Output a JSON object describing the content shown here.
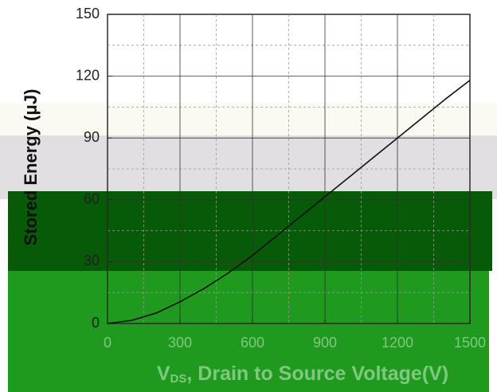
{
  "chart_data": {
    "type": "line",
    "y_label": "Stored Energy (μJ)",
    "x_label_main": "V",
    "x_label_sub": "DS",
    "x_label_rest": ", Drain to Source Voltage(V)",
    "x": [
      0,
      100,
      200,
      300,
      400,
      500,
      600,
      700,
      800,
      900,
      1000,
      1100,
      1200,
      1300,
      1400,
      1500
    ],
    "series": [
      {
        "name": "Stored Energy",
        "color": "#111111",
        "values": [
          0,
          1.5,
          5,
          10.5,
          17,
          24.5,
          33,
          42.5,
          52,
          61.5,
          71,
          80.5,
          90,
          99.5,
          109,
          118
        ]
      }
    ],
    "xlim": [
      0,
      1500
    ],
    "xticks": [
      0,
      300,
      600,
      900,
      1200,
      1500
    ],
    "ylim": [
      0,
      150
    ],
    "yticks": [
      0,
      30,
      60,
      90,
      120,
      150
    ],
    "grid": true
  }
}
